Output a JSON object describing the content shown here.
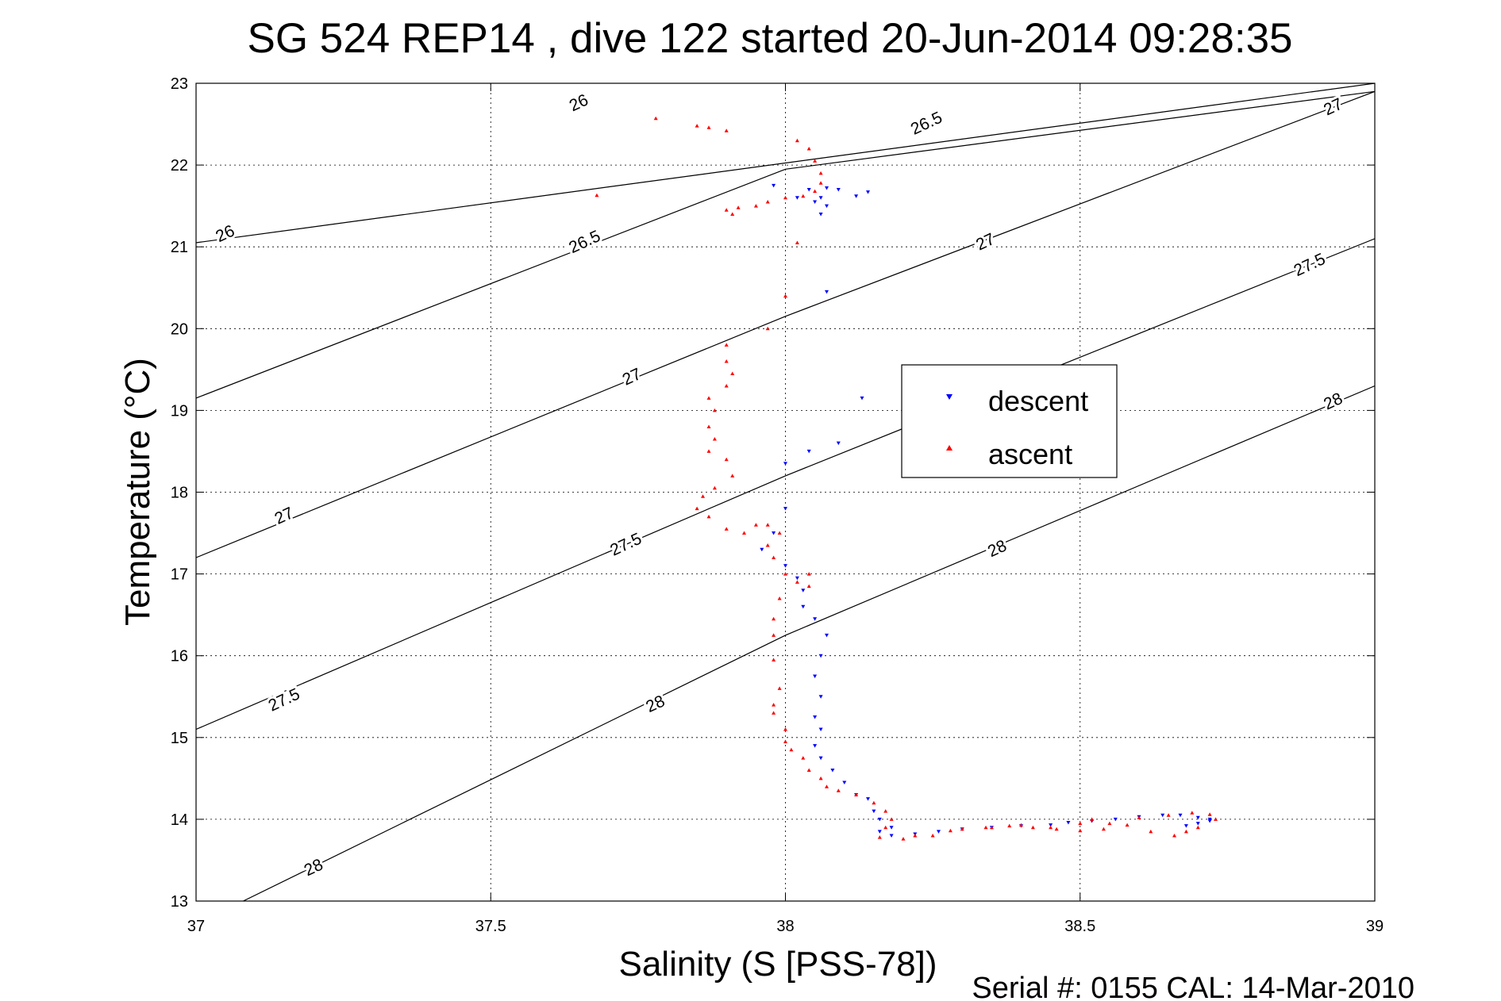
{
  "chart_data": {
    "type": "scatter",
    "title": "SG 524   REP14  , dive 122 started 20-Jun-2014 09:28:35",
    "xlabel": "Salinity (S [PSS-78])",
    "ylabel": "Temperature (°C)",
    "xlim": [
      37,
      39
    ],
    "ylim": [
      13,
      23
    ],
    "xticks": [
      "37",
      "37.5",
      "38",
      "38.5",
      "39"
    ],
    "yticks": [
      "13",
      "14",
      "15",
      "16",
      "17",
      "18",
      "19",
      "20",
      "21",
      "22",
      "23"
    ],
    "grid": true,
    "legend_position": "center-right",
    "footer": "Serial #: 0155  CAL: 14-Mar-2010",
    "isopycnals": [
      {
        "label": "26",
        "points": [
          [
            37.0,
            21.05
          ],
          [
            39.0,
            23.0
          ]
        ]
      },
      {
        "label": "26.5",
        "points": [
          [
            37.0,
            19.15
          ],
          [
            38.0,
            21.95
          ],
          [
            39.0,
            22.9
          ]
        ]
      },
      {
        "label": "27",
        "points": [
          [
            37.0,
            17.2
          ],
          [
            38.0,
            20.15
          ],
          [
            39.0,
            22.9
          ]
        ]
      },
      {
        "label": "27.5",
        "points": [
          [
            37.0,
            15.1
          ],
          [
            38.0,
            18.2
          ],
          [
            39.0,
            21.1
          ]
        ]
      },
      {
        "label": "28",
        "points": [
          [
            37.08,
            13.0
          ],
          [
            38.0,
            16.25
          ],
          [
            39.0,
            19.3
          ]
        ]
      }
    ],
    "contour_labels": [
      {
        "text": "26",
        "x": 37.65,
        "y": 22.75
      },
      {
        "text": "26",
        "x": 37.05,
        "y": 21.15
      },
      {
        "text": "26.5",
        "x": 38.24,
        "y": 22.5
      },
      {
        "text": "26.5",
        "x": 37.66,
        "y": 21.05
      },
      {
        "text": "27",
        "x": 38.93,
        "y": 22.7
      },
      {
        "text": "27",
        "x": 38.34,
        "y": 21.05
      },
      {
        "text": "27",
        "x": 37.74,
        "y": 19.4
      },
      {
        "text": "27",
        "x": 37.15,
        "y": 17.7
      },
      {
        "text": "27.5",
        "x": 38.89,
        "y": 20.77
      },
      {
        "text": "27.5",
        "x": 37.73,
        "y": 17.35
      },
      {
        "text": "27.5",
        "x": 37.15,
        "y": 15.45
      },
      {
        "text": "28",
        "x": 38.93,
        "y": 19.1
      },
      {
        "text": "28",
        "x": 38.36,
        "y": 17.3
      },
      {
        "text": "28",
        "x": 37.78,
        "y": 15.4
      },
      {
        "text": "28",
        "x": 37.2,
        "y": 13.4
      }
    ],
    "series": [
      {
        "name": "descent",
        "color": "#0000ff",
        "marker": "triangle-down",
        "points": [
          [
            38.14,
            21.67
          ],
          [
            38.12,
            21.62
          ],
          [
            38.09,
            21.7
          ],
          [
            38.07,
            21.72
          ],
          [
            38.06,
            21.6
          ],
          [
            38.07,
            21.5
          ],
          [
            38.06,
            21.4
          ],
          [
            38.05,
            21.55
          ],
          [
            38.04,
            21.7
          ],
          [
            38.02,
            21.6
          ],
          [
            37.98,
            21.75
          ],
          [
            38.07,
            20.45
          ],
          [
            38.13,
            19.15
          ],
          [
            38.09,
            18.6
          ],
          [
            38.04,
            18.5
          ],
          [
            38.0,
            18.35
          ],
          [
            38.0,
            17.8
          ],
          [
            37.98,
            17.5
          ],
          [
            37.96,
            17.3
          ],
          [
            38.0,
            17.1
          ],
          [
            38.02,
            16.95
          ],
          [
            38.03,
            16.8
          ],
          [
            38.03,
            16.6
          ],
          [
            38.05,
            16.45
          ],
          [
            38.07,
            16.25
          ],
          [
            38.06,
            16.0
          ],
          [
            38.05,
            15.75
          ],
          [
            38.06,
            15.5
          ],
          [
            38.05,
            15.25
          ],
          [
            38.06,
            15.1
          ],
          [
            38.05,
            14.9
          ],
          [
            38.06,
            14.75
          ],
          [
            38.08,
            14.6
          ],
          [
            38.1,
            14.45
          ],
          [
            38.12,
            14.3
          ],
          [
            38.14,
            14.25
          ],
          [
            38.15,
            14.1
          ],
          [
            38.16,
            14.0
          ],
          [
            38.18,
            13.9
          ],
          [
            38.16,
            13.85
          ],
          [
            38.18,
            13.8
          ],
          [
            38.22,
            13.82
          ],
          [
            38.26,
            13.85
          ],
          [
            38.3,
            13.88
          ],
          [
            38.35,
            13.9
          ],
          [
            38.4,
            13.92
          ],
          [
            38.45,
            13.93
          ],
          [
            38.48,
            13.96
          ],
          [
            38.52,
            13.98
          ],
          [
            38.56,
            14.0
          ],
          [
            38.6,
            14.03
          ],
          [
            38.64,
            14.05
          ],
          [
            38.67,
            14.05
          ],
          [
            38.7,
            14.02
          ],
          [
            38.72,
            13.98
          ],
          [
            38.7,
            13.95
          ],
          [
            38.68,
            13.92
          ],
          [
            38.72,
            14.0
          ]
        ]
      },
      {
        "name": "ascent",
        "color": "#ff0000",
        "marker": "triangle-up",
        "points": [
          [
            37.78,
            22.57
          ],
          [
            37.85,
            22.48
          ],
          [
            37.87,
            22.46
          ],
          [
            37.9,
            22.42
          ],
          [
            37.68,
            21.63
          ],
          [
            38.02,
            22.3
          ],
          [
            38.04,
            22.2
          ],
          [
            38.05,
            22.05
          ],
          [
            38.06,
            21.9
          ],
          [
            38.06,
            21.78
          ],
          [
            38.05,
            21.68
          ],
          [
            38.03,
            21.62
          ],
          [
            38.0,
            21.6
          ],
          [
            37.97,
            21.55
          ],
          [
            37.95,
            21.5
          ],
          [
            37.92,
            21.48
          ],
          [
            37.9,
            21.45
          ],
          [
            37.91,
            21.4
          ],
          [
            38.02,
            21.05
          ],
          [
            38.0,
            20.4
          ],
          [
            37.97,
            20.0
          ],
          [
            37.9,
            19.8
          ],
          [
            37.9,
            19.6
          ],
          [
            37.91,
            19.45
          ],
          [
            37.9,
            19.3
          ],
          [
            37.87,
            19.15
          ],
          [
            37.88,
            19.0
          ],
          [
            37.87,
            18.8
          ],
          [
            37.88,
            18.65
          ],
          [
            37.87,
            18.5
          ],
          [
            37.9,
            18.4
          ],
          [
            37.91,
            18.2
          ],
          [
            37.88,
            18.05
          ],
          [
            37.86,
            17.95
          ],
          [
            37.85,
            17.8
          ],
          [
            37.87,
            17.7
          ],
          [
            37.9,
            17.55
          ],
          [
            37.93,
            17.5
          ],
          [
            37.95,
            17.6
          ],
          [
            37.97,
            17.6
          ],
          [
            37.99,
            17.5
          ],
          [
            37.97,
            17.35
          ],
          [
            37.98,
            17.2
          ],
          [
            38.0,
            17.0
          ],
          [
            38.02,
            16.9
          ],
          [
            38.04,
            17.0
          ],
          [
            38.04,
            16.85
          ],
          [
            37.99,
            16.7
          ],
          [
            37.98,
            16.45
          ],
          [
            37.98,
            16.25
          ],
          [
            37.98,
            15.95
          ],
          [
            37.99,
            15.6
          ],
          [
            37.98,
            15.4
          ],
          [
            37.98,
            15.3
          ],
          [
            38.0,
            15.1
          ],
          [
            38.0,
            14.95
          ],
          [
            38.01,
            14.85
          ],
          [
            38.03,
            14.75
          ],
          [
            38.04,
            14.6
          ],
          [
            38.06,
            14.5
          ],
          [
            38.07,
            14.4
          ],
          [
            38.09,
            14.35
          ],
          [
            38.12,
            14.3
          ],
          [
            38.15,
            14.2
          ],
          [
            38.17,
            14.1
          ],
          [
            38.18,
            14.0
          ],
          [
            38.17,
            13.9
          ],
          [
            38.16,
            13.78
          ],
          [
            38.2,
            13.76
          ],
          [
            38.25,
            13.8
          ],
          [
            38.3,
            13.88
          ],
          [
            38.35,
            13.9
          ],
          [
            38.4,
            13.93
          ],
          [
            38.45,
            13.9
          ],
          [
            38.5,
            13.95
          ],
          [
            38.52,
            14.0
          ],
          [
            38.55,
            13.95
          ],
          [
            38.6,
            14.02
          ],
          [
            38.65,
            14.05
          ],
          [
            38.69,
            14.08
          ],
          [
            38.72,
            14.06
          ],
          [
            38.73,
            14.0
          ],
          [
            38.7,
            13.9
          ],
          [
            38.68,
            13.85
          ],
          [
            38.66,
            13.8
          ],
          [
            38.62,
            13.85
          ],
          [
            38.58,
            13.93
          ],
          [
            38.54,
            13.88
          ],
          [
            38.5,
            13.86
          ],
          [
            38.46,
            13.88
          ],
          [
            38.42,
            13.9
          ],
          [
            38.38,
            13.92
          ],
          [
            38.34,
            13.9
          ],
          [
            38.28,
            13.86
          ],
          [
            38.22,
            13.8
          ]
        ]
      }
    ]
  }
}
